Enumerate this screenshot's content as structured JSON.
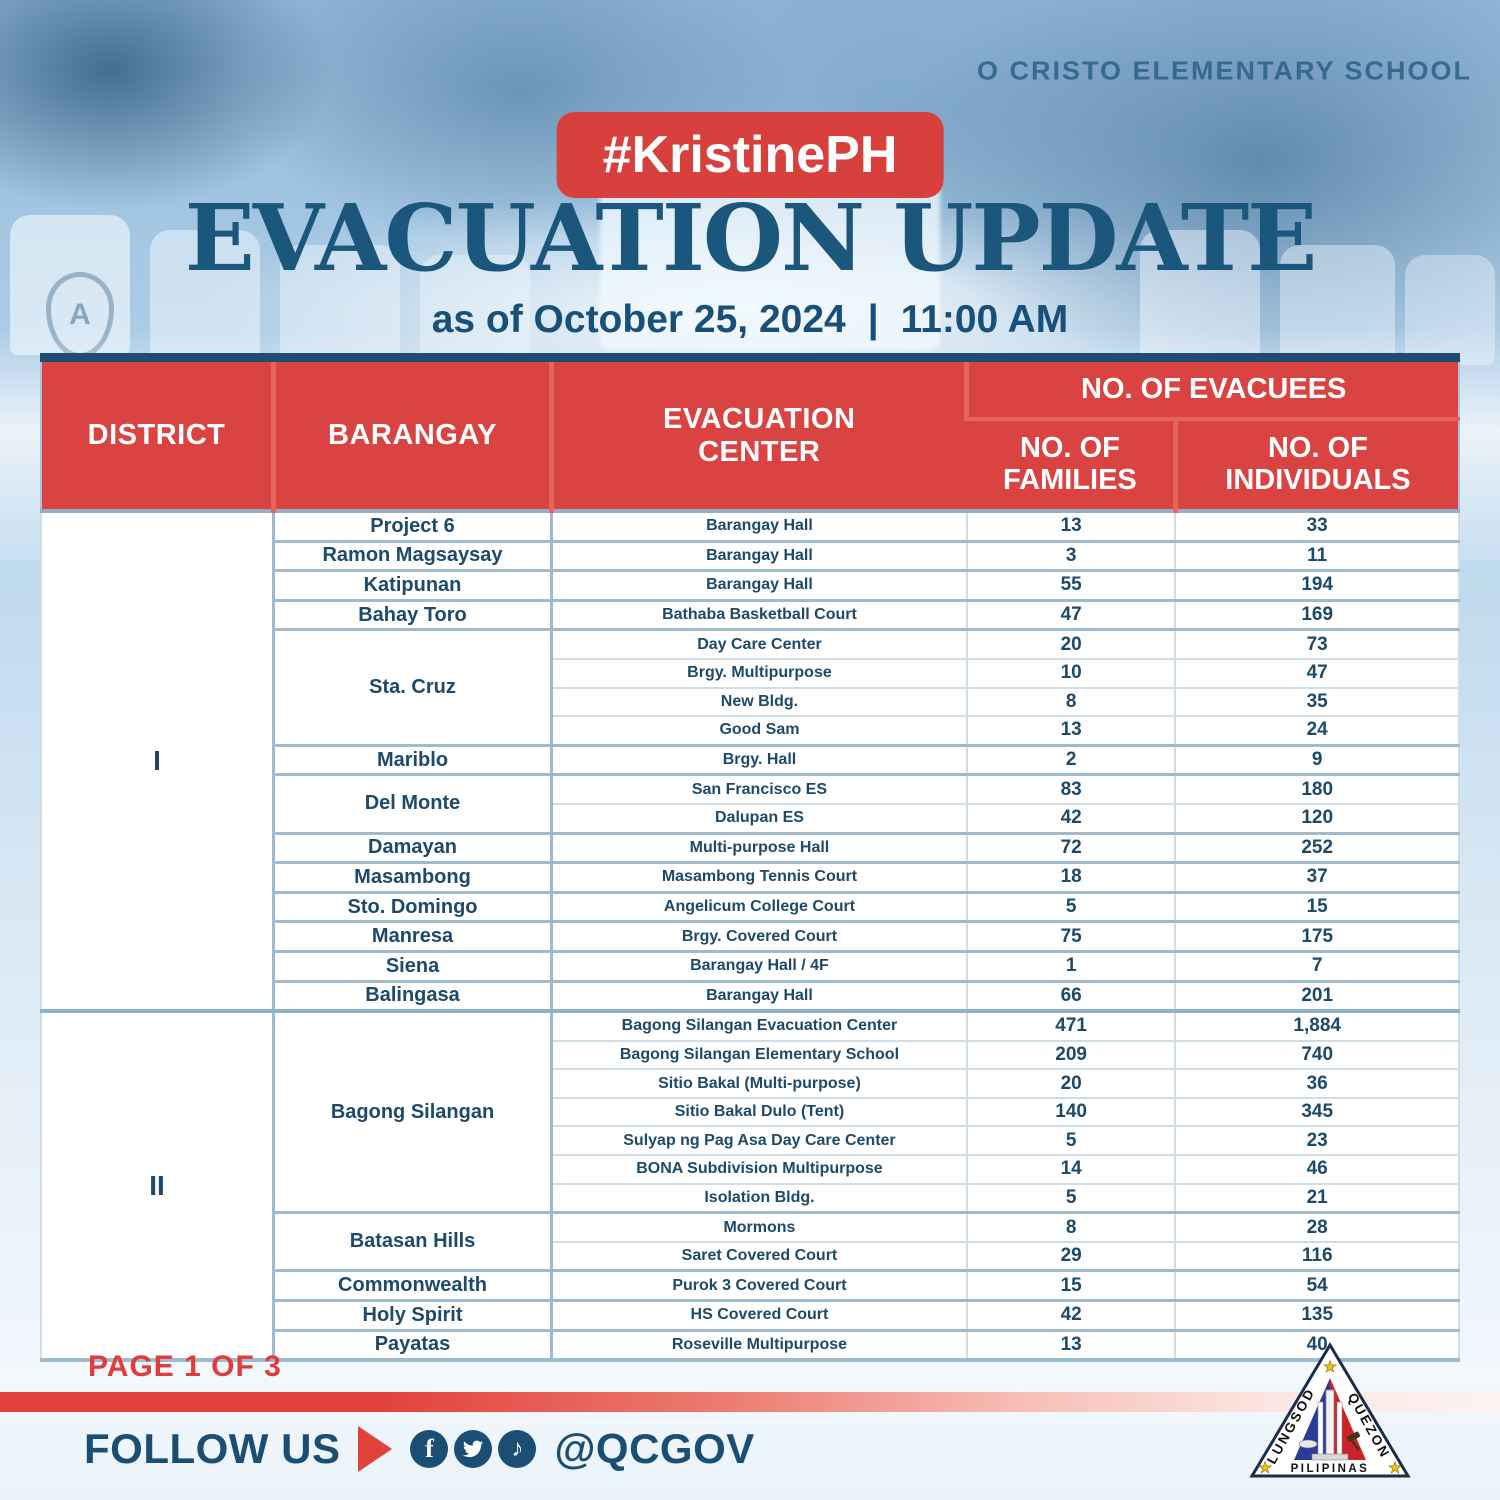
{
  "header": {
    "hashtag": "#KristinePH",
    "title": "EVACUATION UPDATE",
    "as_of": "as of October 25, 2024",
    "divider": "|",
    "time": "11:00 AM",
    "background_sign": "O CRISTO ELEMENTARY SCHOOL"
  },
  "table": {
    "columns": {
      "district": "DISTRICT",
      "barangay": "BARANGAY",
      "evacuation_center": "EVACUATION CENTER",
      "evacuees_group": "NO. OF EVACUEES",
      "families": "NO. OF FAMILIES",
      "individuals": "NO. OF INDIVIDUALS"
    },
    "districts": [
      {
        "label": "I",
        "groups": [
          {
            "barangay": "Project 6",
            "centers": [
              {
                "name": "Barangay Hall",
                "families": "13",
                "individuals": "33"
              }
            ]
          },
          {
            "barangay": "Ramon Magsaysay",
            "centers": [
              {
                "name": "Barangay Hall",
                "families": "3",
                "individuals": "11"
              }
            ]
          },
          {
            "barangay": "Katipunan",
            "centers": [
              {
                "name": "Barangay Hall",
                "families": "55",
                "individuals": "194"
              }
            ]
          },
          {
            "barangay": "Bahay Toro",
            "centers": [
              {
                "name": "Bathaba Basketball Court",
                "families": "47",
                "individuals": "169"
              }
            ]
          },
          {
            "barangay": "Sta. Cruz",
            "centers": [
              {
                "name": "Day Care Center",
                "families": "20",
                "individuals": "73"
              },
              {
                "name": "Brgy. Multipurpose",
                "families": "10",
                "individuals": "47"
              },
              {
                "name": "New Bldg.",
                "families": "8",
                "individuals": "35"
              },
              {
                "name": "Good Sam",
                "families": "13",
                "individuals": "24"
              }
            ]
          },
          {
            "barangay": "Mariblo",
            "centers": [
              {
                "name": "Brgy. Hall",
                "families": "2",
                "individuals": "9"
              }
            ]
          },
          {
            "barangay": "Del Monte",
            "centers": [
              {
                "name": "San Francisco ES",
                "families": "83",
                "individuals": "180"
              },
              {
                "name": "Dalupan ES",
                "families": "42",
                "individuals": "120"
              }
            ]
          },
          {
            "barangay": "Damayan",
            "centers": [
              {
                "name": "Multi-purpose Hall",
                "families": "72",
                "individuals": "252"
              }
            ]
          },
          {
            "barangay": "Masambong",
            "centers": [
              {
                "name": "Masambong Tennis Court",
                "families": "18",
                "individuals": "37"
              }
            ]
          },
          {
            "barangay": "Sto. Domingo",
            "centers": [
              {
                "name": "Angelicum College Court",
                "families": "5",
                "individuals": "15"
              }
            ]
          },
          {
            "barangay": "Manresa",
            "centers": [
              {
                "name": "Brgy. Covered Court",
                "families": "75",
                "individuals": "175"
              }
            ]
          },
          {
            "barangay": "Siena",
            "centers": [
              {
                "name": "Barangay Hall / 4F",
                "families": "1",
                "individuals": "7"
              }
            ]
          },
          {
            "barangay": "Balingasa",
            "centers": [
              {
                "name": "Barangay Hall",
                "families": "66",
                "individuals": "201"
              }
            ]
          }
        ]
      },
      {
        "label": "II",
        "groups": [
          {
            "barangay": "Bagong Silangan",
            "centers": [
              {
                "name": "Bagong Silangan Evacuation Center",
                "families": "471",
                "individuals": "1,884"
              },
              {
                "name": "Bagong Silangan Elementary School",
                "families": "209",
                "individuals": "740"
              },
              {
                "name": "Sitio Bakal (Multi-purpose)",
                "families": "20",
                "individuals": "36"
              },
              {
                "name": "Sitio Bakal Dulo (Tent)",
                "families": "140",
                "individuals": "345"
              },
              {
                "name": "Sulyap ng Pag Asa Day Care Center",
                "families": "5",
                "individuals": "23"
              },
              {
                "name": "BONA Subdivision Multipurpose",
                "families": "14",
                "individuals": "46"
              },
              {
                "name": "Isolation Bldg.",
                "families": "5",
                "individuals": "21"
              }
            ]
          },
          {
            "barangay": "Batasan Hills",
            "centers": [
              {
                "name": "Mormons",
                "families": "8",
                "individuals": "28"
              },
              {
                "name": "Saret Covered Court",
                "families": "29",
                "individuals": "116"
              }
            ]
          },
          {
            "barangay": "Commonwealth",
            "centers": [
              {
                "name": "Purok 3 Covered Court",
                "families": "15",
                "individuals": "54"
              }
            ]
          },
          {
            "barangay": "Holy Spirit",
            "centers": [
              {
                "name": "HS Covered Court",
                "families": "42",
                "individuals": "135"
              }
            ]
          },
          {
            "barangay": "Payatas",
            "centers": [
              {
                "name": "Roseville Multipurpose",
                "families": "13",
                "individuals": "40"
              }
            ]
          }
        ]
      }
    ]
  },
  "footer": {
    "page_label": "PAGE 1 OF 3",
    "follow_label": "FOLLOW US",
    "handle": "@QCGOV",
    "social_icons": [
      "facebook-icon",
      "twitter-icon",
      "tiktok-icon"
    ],
    "seal": {
      "left_text": "LUNGSOD",
      "right_text": "QUEZON",
      "bottom_text": "PILIPINAS"
    }
  },
  "colors": {
    "header_red": "#d94341",
    "badge_red": "#d8403e",
    "title_blue": "#1b567d",
    "body_navy": "#1d4a6a",
    "page_red": "#e23b3a",
    "bar_red": "#e2413c",
    "icon_navy": "#1b4e74",
    "table_navy_top": "#1d4e70"
  }
}
